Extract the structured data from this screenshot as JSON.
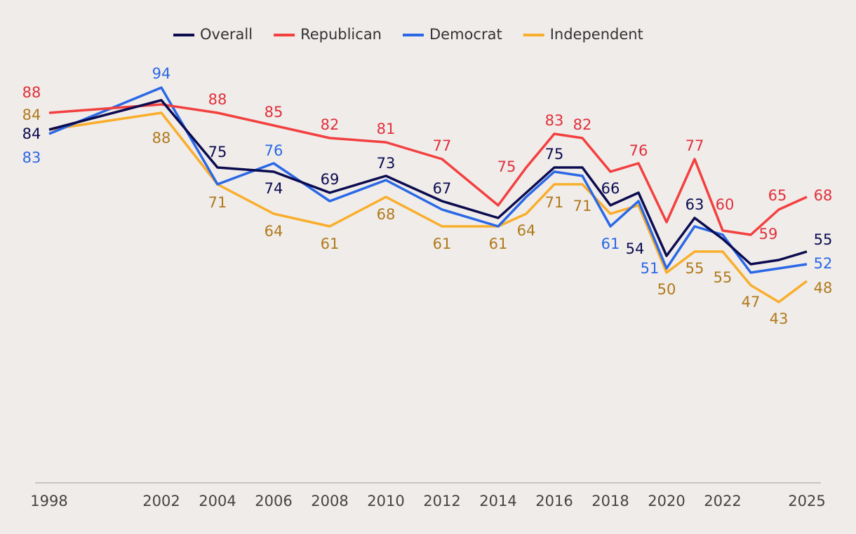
{
  "chart_data": {
    "type": "line",
    "x": [
      1998,
      2002,
      2004,
      2006,
      2008,
      2010,
      2012,
      2014,
      2015,
      2016,
      2017,
      2018,
      2019,
      2020,
      2021,
      2022,
      2023,
      2024,
      2025
    ],
    "xlim": [
      1998,
      2025
    ],
    "xticks": [
      1998,
      2002,
      2004,
      2006,
      2008,
      2010,
      2012,
      2014,
      2016,
      2018,
      2020,
      2022,
      2025
    ],
    "ylim": [
      0,
      100
    ],
    "legend": "top",
    "series": [
      {
        "name": "Overall",
        "color": "#0b0b4f",
        "label_color": "#0b0b4f",
        "values": [
          84,
          91,
          75,
          74,
          69,
          73,
          67,
          63,
          69,
          75,
          75,
          66,
          69,
          54,
          63,
          58,
          52,
          53,
          55
        ],
        "value_labels": [
          84,
          null,
          75,
          74,
          69,
          73,
          67,
          null,
          null,
          75,
          null,
          66,
          null,
          54,
          63,
          null,
          null,
          null,
          55
        ]
      },
      {
        "name": "Republican",
        "color": "#f2403f",
        "label_color": "#e0303a",
        "values": [
          88,
          90,
          88,
          85,
          82,
          81,
          77,
          66,
          75,
          83,
          82,
          74,
          76,
          62,
          77,
          60,
          59,
          65,
          68
        ],
        "value_labels": [
          88,
          null,
          88,
          85,
          82,
          81,
          77,
          null,
          75,
          83,
          82,
          null,
          76,
          null,
          77,
          60,
          59,
          65,
          68
        ]
      },
      {
        "name": "Democrat",
        "color": "#2a68e6",
        "label_color": "#2a68e6",
        "values": [
          83,
          94,
          71,
          76,
          67,
          72,
          65,
          61,
          68,
          74,
          73,
          61,
          67,
          51,
          61,
          59,
          50,
          51,
          52
        ],
        "value_labels": [
          83,
          94,
          null,
          76,
          null,
          null,
          null,
          null,
          null,
          null,
          null,
          61,
          null,
          51,
          null,
          null,
          null,
          null,
          52
        ]
      },
      {
        "name": "Independent",
        "color": "#f9ae2b",
        "label_color": "#b07a1a",
        "values": [
          84,
          88,
          71,
          64,
          61,
          68,
          61,
          61,
          64,
          71,
          71,
          64,
          66,
          50,
          55,
          55,
          47,
          43,
          48
        ],
        "value_labels": [
          84,
          88,
          71,
          64,
          61,
          68,
          61,
          61,
          64,
          71,
          71,
          null,
          null,
          50,
          55,
          55,
          47,
          43,
          48
        ]
      }
    ]
  }
}
